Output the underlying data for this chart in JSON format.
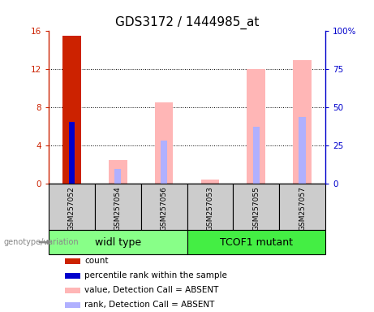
{
  "title": "GDS3172 / 1444985_at",
  "categories": [
    "GSM257052",
    "GSM257054",
    "GSM257056",
    "GSM257053",
    "GSM257055",
    "GSM257057"
  ],
  "groups": [
    "widl type",
    "TCOF1 mutant"
  ],
  "ylim_left": [
    0,
    16
  ],
  "ylim_right": [
    0,
    100
  ],
  "yticks_left": [
    0,
    4,
    8,
    12,
    16
  ],
  "yticks_right": [
    0,
    25,
    50,
    75,
    100
  ],
  "ytick_labels_left": [
    "0",
    "4",
    "8",
    "12",
    "16"
  ],
  "ytick_labels_right": [
    "0",
    "25",
    "50",
    "75",
    "100%"
  ],
  "left_axis_color": "#cc2200",
  "right_axis_color": "#0000cc",
  "count_values": [
    15.5,
    0,
    0,
    0,
    0,
    0
  ],
  "count_color": "#cc2200",
  "count_bar_width": 0.4,
  "percentile_values": [
    6.5,
    0,
    0,
    0,
    0,
    0
  ],
  "percentile_color": "#0000cc",
  "percentile_bar_width": 0.12,
  "absent_value_values": [
    0,
    2.5,
    8.5,
    0.4,
    12.0,
    13.0
  ],
  "absent_value_color": "#ffb6b6",
  "absent_rank_values": [
    0,
    1.5,
    4.5,
    0,
    6.0,
    7.0
  ],
  "absent_rank_color": "#b0b0ff",
  "absent_bar_width": 0.4,
  "absent_rank_bar_width": 0.15,
  "sample_bg_color": "#cccccc",
  "bg_color": "#ffffff",
  "legend_items": [
    {
      "label": "count",
      "color": "#cc2200"
    },
    {
      "label": "percentile rank within the sample",
      "color": "#0000cc"
    },
    {
      "label": "value, Detection Call = ABSENT",
      "color": "#ffb6b6"
    },
    {
      "label": "rank, Detection Call = ABSENT",
      "color": "#b0b0ff"
    }
  ],
  "genotype_label": "genotype/variation",
  "title_fontsize": 11,
  "group_label_fontsize": 9
}
